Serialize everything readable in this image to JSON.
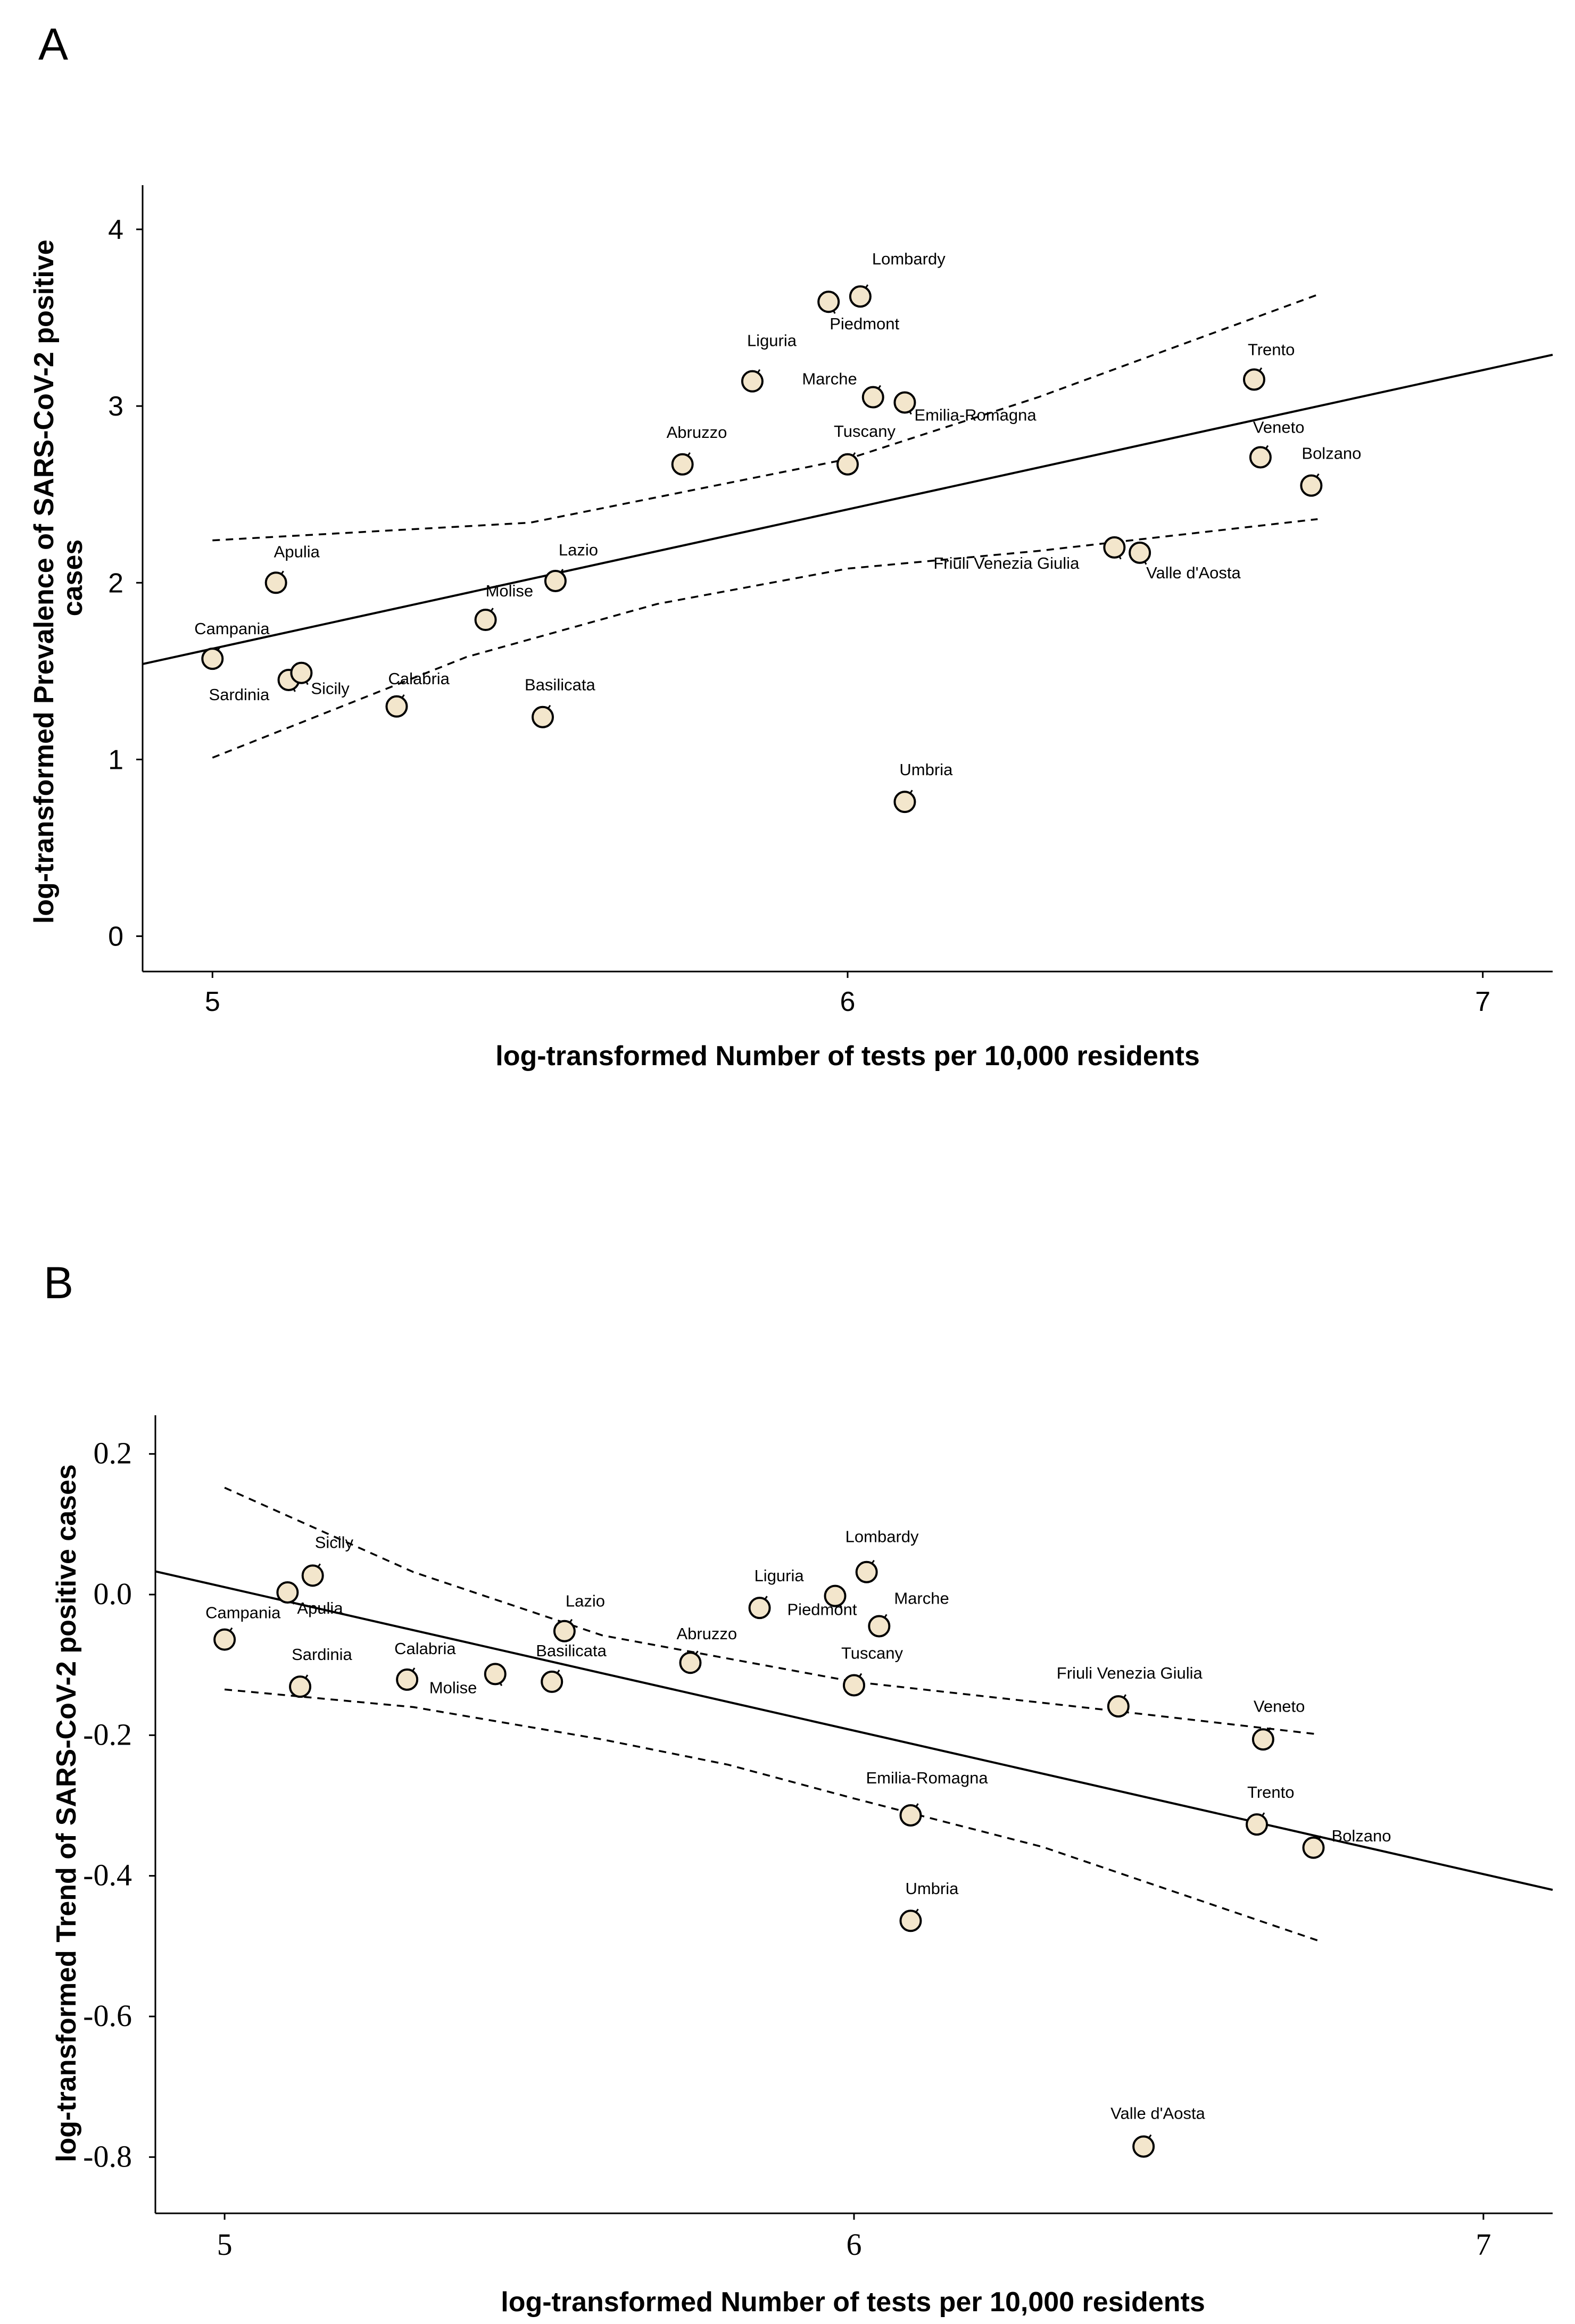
{
  "figure": {
    "panels": [
      {
        "letter": "A",
        "chart_data": {
          "type": "scatter",
          "title": "",
          "xlabel": "log-transformed Number of tests per 10,000 residents",
          "ylabel": "log-transformed Prevalence of SARS-CoV-2 positive cases",
          "xlim": [
            4.89,
            7.11
          ],
          "ylim": [
            -0.2,
            4.25
          ],
          "xticks": [
            5,
            6,
            7
          ],
          "yticks": [
            0,
            1,
            2,
            3,
            4
          ],
          "xtick_labels": [
            "5",
            "6",
            "7"
          ],
          "ytick_labels": [
            "0",
            "1",
            "2",
            "3",
            "4"
          ],
          "grid": false,
          "legend": "none",
          "points": [
            {
              "label": "Lombardy",
              "x": 6.02,
              "y": 3.62
            },
            {
              "label": "Piedmont",
              "x": 5.97,
              "y": 3.59
            },
            {
              "label": "Liguria",
              "x": 5.85,
              "y": 3.14
            },
            {
              "label": "Marche",
              "x": 6.04,
              "y": 3.05
            },
            {
              "label": "Emilia-Romagna",
              "x": 6.09,
              "y": 3.02
            },
            {
              "label": "Trento",
              "x": 6.64,
              "y": 3.15
            },
            {
              "label": "Abruzzo",
              "x": 5.74,
              "y": 2.67
            },
            {
              "label": "Tuscany",
              "x": 6.0,
              "y": 2.67
            },
            {
              "label": "Veneto",
              "x": 6.65,
              "y": 2.71
            },
            {
              "label": "Bolzano",
              "x": 6.73,
              "y": 2.55
            },
            {
              "label": "Apulia",
              "x": 5.1,
              "y": 2.0
            },
            {
              "label": "Lazio",
              "x": 5.54,
              "y": 2.01
            },
            {
              "label": "Friuli Venezia Giulia",
              "x": 6.42,
              "y": 2.2
            },
            {
              "label": "Valle d'Aosta",
              "x": 6.46,
              "y": 2.17
            },
            {
              "label": "Molise",
              "x": 5.43,
              "y": 1.79
            },
            {
              "label": "Campania",
              "x": 5.0,
              "y": 1.57
            },
            {
              "label": "Sardinia",
              "x": 5.12,
              "y": 1.45
            },
            {
              "label": "Sicily",
              "x": 5.14,
              "y": 1.49
            },
            {
              "label": "Calabria",
              "x": 5.29,
              "y": 1.3
            },
            {
              "label": "Basilicata",
              "x": 5.52,
              "y": 1.24
            },
            {
              "label": "Umbria",
              "x": 6.09,
              "y": 0.76
            }
          ],
          "fit_line": {
            "x": [
              4.89,
              7.11
            ],
            "y": [
              1.54,
              3.29
            ]
          },
          "ci_upper": {
            "x": [
              5.0,
              5.5,
              6.0,
              6.3,
              6.74
            ],
            "y": [
              2.24,
              2.34,
              2.7,
              3.05,
              3.63
            ]
          },
          "ci_lower": {
            "x": [
              5.0,
              5.4,
              5.7,
              6.0,
              6.3,
              6.74
            ],
            "y": [
              1.01,
              1.58,
              1.88,
              2.08,
              2.18,
              2.36
            ]
          }
        }
      },
      {
        "letter": "B",
        "chart_data": {
          "type": "scatter",
          "title": "",
          "xlabel": "log-transformed Number of tests per 10,000 residents",
          "ylabel": "log-transformed Trend of SARS-CoV-2 positive cases",
          "xlim": [
            4.89,
            7.11
          ],
          "ylim": [
            -0.88,
            0.255
          ],
          "xticks": [
            5,
            6,
            7
          ],
          "yticks": [
            0.2,
            0.0,
            -0.2,
            -0.4,
            -0.6,
            -0.8
          ],
          "xtick_labels": [
            "5",
            "6",
            "7"
          ],
          "ytick_labels": [
            "0.2",
            "0.0",
            "-0.2",
            "-0.4",
            "-0.6",
            "-0.8"
          ],
          "grid": false,
          "legend": "none",
          "points": [
            {
              "label": "Sicily",
              "x": 5.14,
              "y": 0.027
            },
            {
              "label": "Apulia",
              "x": 5.1,
              "y": 0.003
            },
            {
              "label": "Campania",
              "x": 5.0,
              "y": -0.064
            },
            {
              "label": "Sardinia",
              "x": 5.12,
              "y": -0.131
            },
            {
              "label": "Calabria",
              "x": 5.29,
              "y": -0.121
            },
            {
              "label": "Molise",
              "x": 5.43,
              "y": -0.113
            },
            {
              "label": "Basilicata",
              "x": 5.52,
              "y": -0.124
            },
            {
              "label": "Lazio",
              "x": 5.54,
              "y": -0.052
            },
            {
              "label": "Abruzzo",
              "x": 5.74,
              "y": -0.097
            },
            {
              "label": "Liguria",
              "x": 5.85,
              "y": -0.019
            },
            {
              "label": "Piedmont",
              "x": 5.97,
              "y": -0.002
            },
            {
              "label": "Lombardy",
              "x": 6.02,
              "y": 0.032
            },
            {
              "label": "Marche",
              "x": 6.04,
              "y": -0.045
            },
            {
              "label": "Tuscany",
              "x": 6.0,
              "y": -0.129
            },
            {
              "label": "Emilia-Romagna",
              "x": 6.09,
              "y": -0.314
            },
            {
              "label": "Umbria",
              "x": 6.09,
              "y": -0.464
            },
            {
              "label": "Friuli Venezia Giulia",
              "x": 6.42,
              "y": -0.159
            },
            {
              "label": "Veneto",
              "x": 6.65,
              "y": -0.206
            },
            {
              "label": "Trento",
              "x": 6.64,
              "y": -0.327
            },
            {
              "label": "Bolzano",
              "x": 6.73,
              "y": -0.36
            },
            {
              "label": "Valle d'Aosta",
              "x": 6.46,
              "y": -0.785
            }
          ],
          "fit_line": {
            "x": [
              4.89,
              7.11
            ],
            "y": [
              0.033,
              -0.42
            ]
          },
          "ci_upper": {
            "x": [
              5.0,
              5.3,
              5.6,
              6.0,
              6.4,
              6.74
            ],
            "y": [
              0.152,
              0.032,
              -0.058,
              -0.124,
              -0.164,
              -0.199
            ]
          },
          "ci_lower": {
            "x": [
              5.0,
              5.3,
              5.6,
              5.8,
              6.0,
              6.3,
              6.74
            ],
            "y": [
              -0.135,
              -0.16,
              -0.206,
              -0.242,
              -0.29,
              -0.359,
              -0.493
            ]
          }
        }
      }
    ]
  }
}
